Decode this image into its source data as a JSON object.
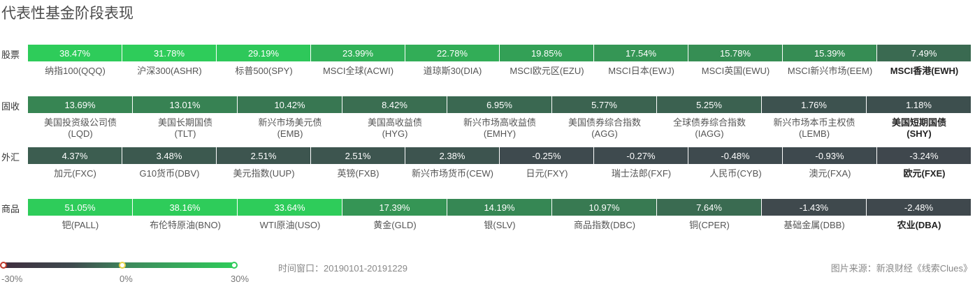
{
  "title": "代表性基金阶段表现",
  "colors": {
    "neg": "#4a2f42",
    "mid": "#3e4a4e",
    "pos": "#2ecc5a"
  },
  "chart_data": {
    "type": "heatmap",
    "scale": {
      "min": -30,
      "mid": 0,
      "max": 30
    },
    "groups": [
      {
        "label": "股票",
        "items": [
          {
            "value": "38.47%",
            "name": "纳指100(QQQ)"
          },
          {
            "value": "31.78%",
            "name": "沪深300(ASHR)"
          },
          {
            "value": "29.19%",
            "name": "标普500(SPY)"
          },
          {
            "value": "23.99%",
            "name": "MSCI全球(ACWI)"
          },
          {
            "value": "22.78%",
            "name": "道琼斯30(DIA)"
          },
          {
            "value": "19.85%",
            "name": "MSCI欧元区(EZU)"
          },
          {
            "value": "17.54%",
            "name": "MSCI日本(EWJ)"
          },
          {
            "value": "15.78%",
            "name": "MSCI英国(EWU)"
          },
          {
            "value": "15.39%",
            "name": "MSCI新兴市场(EEM)"
          },
          {
            "value": "7.49%",
            "name": "MSCI香港(EWH)"
          }
        ]
      },
      {
        "label": "固收",
        "items": [
          {
            "value": "13.69%",
            "name": "美国投资级公司债\n(LQD)"
          },
          {
            "value": "13.01%",
            "name": "美国长期国债\n(TLT)"
          },
          {
            "value": "10.42%",
            "name": "新兴市场美元债\n(EMB)"
          },
          {
            "value": "8.42%",
            "name": "美国高收益债\n(HYG)"
          },
          {
            "value": "6.95%",
            "name": "新兴市场高收益债\n(EMHY)"
          },
          {
            "value": "5.77%",
            "name": "美国债券综合指数\n(AGG)"
          },
          {
            "value": "5.25%",
            "name": "全球债券综合指数\n(IAGG)"
          },
          {
            "value": "1.76%",
            "name": "新兴市场本币主权债\n(LEMB)"
          },
          {
            "value": "1.18%",
            "name": "美国短期国债\n(SHY)"
          }
        ]
      },
      {
        "label": "外汇",
        "items": [
          {
            "value": "4.37%",
            "name": "加元(FXC)"
          },
          {
            "value": "3.48%",
            "name": "G10货币(DBV)"
          },
          {
            "value": "2.51%",
            "name": "美元指数(UUP)"
          },
          {
            "value": "2.51%",
            "name": "英镑(FXB)"
          },
          {
            "value": "2.38%",
            "name": "新兴市场货币(CEW)"
          },
          {
            "value": "-0.25%",
            "name": "日元(FXY)"
          },
          {
            "value": "-0.27%",
            "name": "瑞士法郎(FXF)"
          },
          {
            "value": "-0.48%",
            "name": "人民币(CYB)"
          },
          {
            "value": "-0.93%",
            "name": "澳元(FXA)"
          },
          {
            "value": "-3.24%",
            "name": "欧元(FXE)"
          }
        ]
      },
      {
        "label": "商品",
        "items": [
          {
            "value": "51.05%",
            "name": "钯(PALL)"
          },
          {
            "value": "38.16%",
            "name": "布伦特原油(BNO)"
          },
          {
            "value": "33.64%",
            "name": "WTI原油(USO)"
          },
          {
            "value": "17.39%",
            "name": "黄金(GLD)"
          },
          {
            "value": "14.19%",
            "name": "银(SLV)"
          },
          {
            "value": "10.97%",
            "name": "商品指数(DBC)"
          },
          {
            "value": "7.64%",
            "name": "铜(CPER)"
          },
          {
            "value": "-1.43%",
            "name": "基础金属(DBB)"
          },
          {
            "value": "-2.48%",
            "name": "农业(DBA)"
          }
        ]
      }
    ]
  },
  "legend": {
    "min_label": "-30%",
    "mid_label": "0%",
    "max_label": "30%"
  },
  "time_window": "时间窗口：20190101-20191229",
  "source": "图片来源：新浪财经《线索Clues》"
}
